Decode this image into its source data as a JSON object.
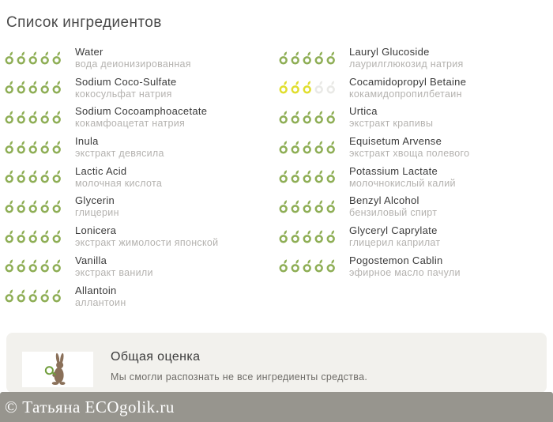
{
  "page": {
    "title": "Список ингредиентов"
  },
  "colors": {
    "rating_green": "#8eae55",
    "rating_yellow": "#e0de2e",
    "rating_empty": "#e9e9e6",
    "panel_bg": "#f2f1ed",
    "footer_bg": "#97958e",
    "rabbit_brown": "#8a7059",
    "magnifier_green": "#6f9c3a"
  },
  "icons": {
    "rating": "apple-leaf-icon",
    "rabbit": "rabbit-with-magnifier-icon"
  },
  "ingredients": {
    "rating_max": 5,
    "columns": [
      {
        "items": [
          {
            "name": "Water",
            "name_ru": "вода деионизированная",
            "rating": 5,
            "color": "green"
          },
          {
            "name": "Sodium Coco-Sulfate",
            "name_ru": "кокосульфат натрия",
            "rating": 5,
            "color": "green"
          },
          {
            "name": "Sodium Cocoamphoacetate",
            "name_ru": "кокамфоацетат натрия",
            "rating": 5,
            "color": "green"
          },
          {
            "name": "Inula",
            "name_ru": "экстракт девясила",
            "rating": 5,
            "color": "green"
          },
          {
            "name": "Lactic Acid",
            "name_ru": "молочная кислота",
            "rating": 5,
            "color": "green"
          },
          {
            "name": "Glycerin",
            "name_ru": "глицерин",
            "rating": 5,
            "color": "green"
          },
          {
            "name": "Lonicera",
            "name_ru": "экстракт жимолости японской",
            "rating": 5,
            "color": "green"
          },
          {
            "name": "Vanilla",
            "name_ru": "экстракт ванили",
            "rating": 5,
            "color": "green"
          },
          {
            "name": "Allantoin",
            "name_ru": "аллантоин",
            "rating": 5,
            "color": "green"
          }
        ]
      },
      {
        "items": [
          {
            "name": "Lauryl Glucoside",
            "name_ru": "лаурилглюкозид натрия",
            "rating": 5,
            "color": "green"
          },
          {
            "name": "Cocamidopropyl Betaine",
            "name_ru": "кокамидопропилбетаин",
            "rating": 3,
            "color": "yellow"
          },
          {
            "name": "Urtica",
            "name_ru": "экстракт крапивы",
            "rating": 5,
            "color": "green"
          },
          {
            "name": "Equisetum Arvense",
            "name_ru": "экстракт хвоща полевого",
            "rating": 5,
            "color": "green"
          },
          {
            "name": "Potassium Lactate",
            "name_ru": "молочнокислый калий",
            "rating": 5,
            "color": "green"
          },
          {
            "name": "Benzyl Alcohol",
            "name_ru": "бензиловый спирт",
            "rating": 5,
            "color": "green"
          },
          {
            "name": "Glyceryl Caprylate",
            "name_ru": "глицерил каприлат",
            "rating": 5,
            "color": "green"
          },
          {
            "name": "Pogostemon Cablin",
            "name_ru": "эфирное масло пачули",
            "rating": 5,
            "color": "green"
          }
        ]
      }
    ]
  },
  "summary": {
    "title": "Общая оценка",
    "text": "Мы смогли распознать  не все ингредиенты средства."
  },
  "footer": {
    "copyright": "© Татьяна  ECOgolik.ru"
  }
}
